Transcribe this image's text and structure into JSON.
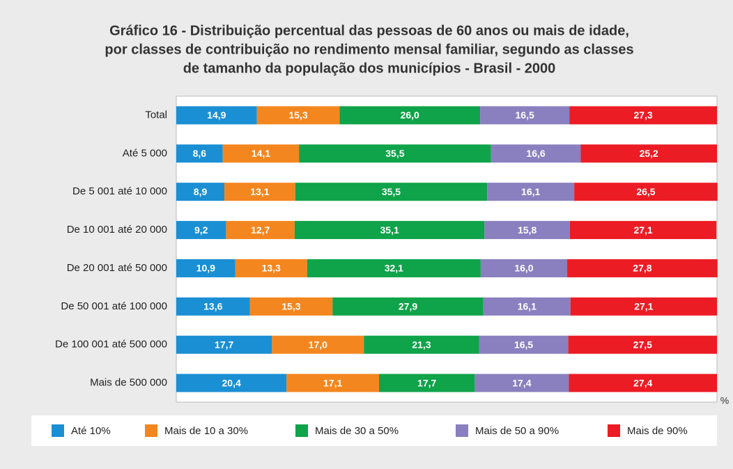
{
  "chart_data": {
    "type": "stacked-barh",
    "title": [
      "Gráfico 16 - Distribuição percentual das pessoas de 60 anos ou mais de idade,",
      "por classes de contribuição no rendimento mensal familiar, segundo as classes",
      "de tamanho da população dos municípios - Brasil - 2000"
    ],
    "x_label": "%",
    "xlim": [
      0,
      100
    ],
    "categories": [
      "Total",
      "Até 5 000",
      "De 5 001 até 10 000",
      "De 10 001 até 20 000",
      "De 20 001 até 50 000",
      "De 50 001 até 100 000",
      "De 100 001 até 500 000",
      "Mais de 500 000"
    ],
    "series": [
      {
        "name": "Até 10%",
        "color": "#1a8fd4",
        "values": [
          14.9,
          8.6,
          8.9,
          9.2,
          10.9,
          13.6,
          17.7,
          20.4
        ],
        "value_labels": [
          "14,9",
          "8,6",
          "8,9",
          "9,2",
          "10,9",
          "13,6",
          "17,7",
          "20,4"
        ]
      },
      {
        "name": "Mais de 10 a 30%",
        "color": "#f4861f",
        "values": [
          15.3,
          14.1,
          13.1,
          12.7,
          13.3,
          15.3,
          17.0,
          17.1
        ],
        "value_labels": [
          "15,3",
          "14,1",
          "13,1",
          "12,7",
          "13,3",
          "15,3",
          "17,0",
          "17,1"
        ]
      },
      {
        "name": "Mais de 30 a 50%",
        "color": "#0fa34a",
        "values": [
          26.0,
          35.5,
          35.5,
          35.1,
          32.1,
          27.9,
          21.3,
          17.7
        ],
        "value_labels": [
          "26,0",
          "35,5",
          "35,5",
          "35,1",
          "32,1",
          "27,9",
          "21,3",
          "17,7"
        ]
      },
      {
        "name": "Mais de 50 a 90%",
        "color": "#8a80bf",
        "values": [
          16.5,
          16.6,
          16.1,
          15.8,
          16.0,
          16.1,
          16.5,
          17.4
        ],
        "value_labels": [
          "16,5",
          "16,6",
          "16,1",
          "15,8",
          "16,0",
          "16,1",
          "16,5",
          "17,4"
        ]
      },
      {
        "name": "Mais de 90%",
        "color": "#ec1c24",
        "values": [
          27.3,
          25.2,
          26.5,
          27.1,
          27.8,
          27.1,
          27.5,
          27.4
        ],
        "value_labels": [
          "27,3",
          "25,2",
          "26,5",
          "27,1",
          "27,8",
          "27,1",
          "27,5",
          "27,4"
        ]
      }
    ]
  }
}
